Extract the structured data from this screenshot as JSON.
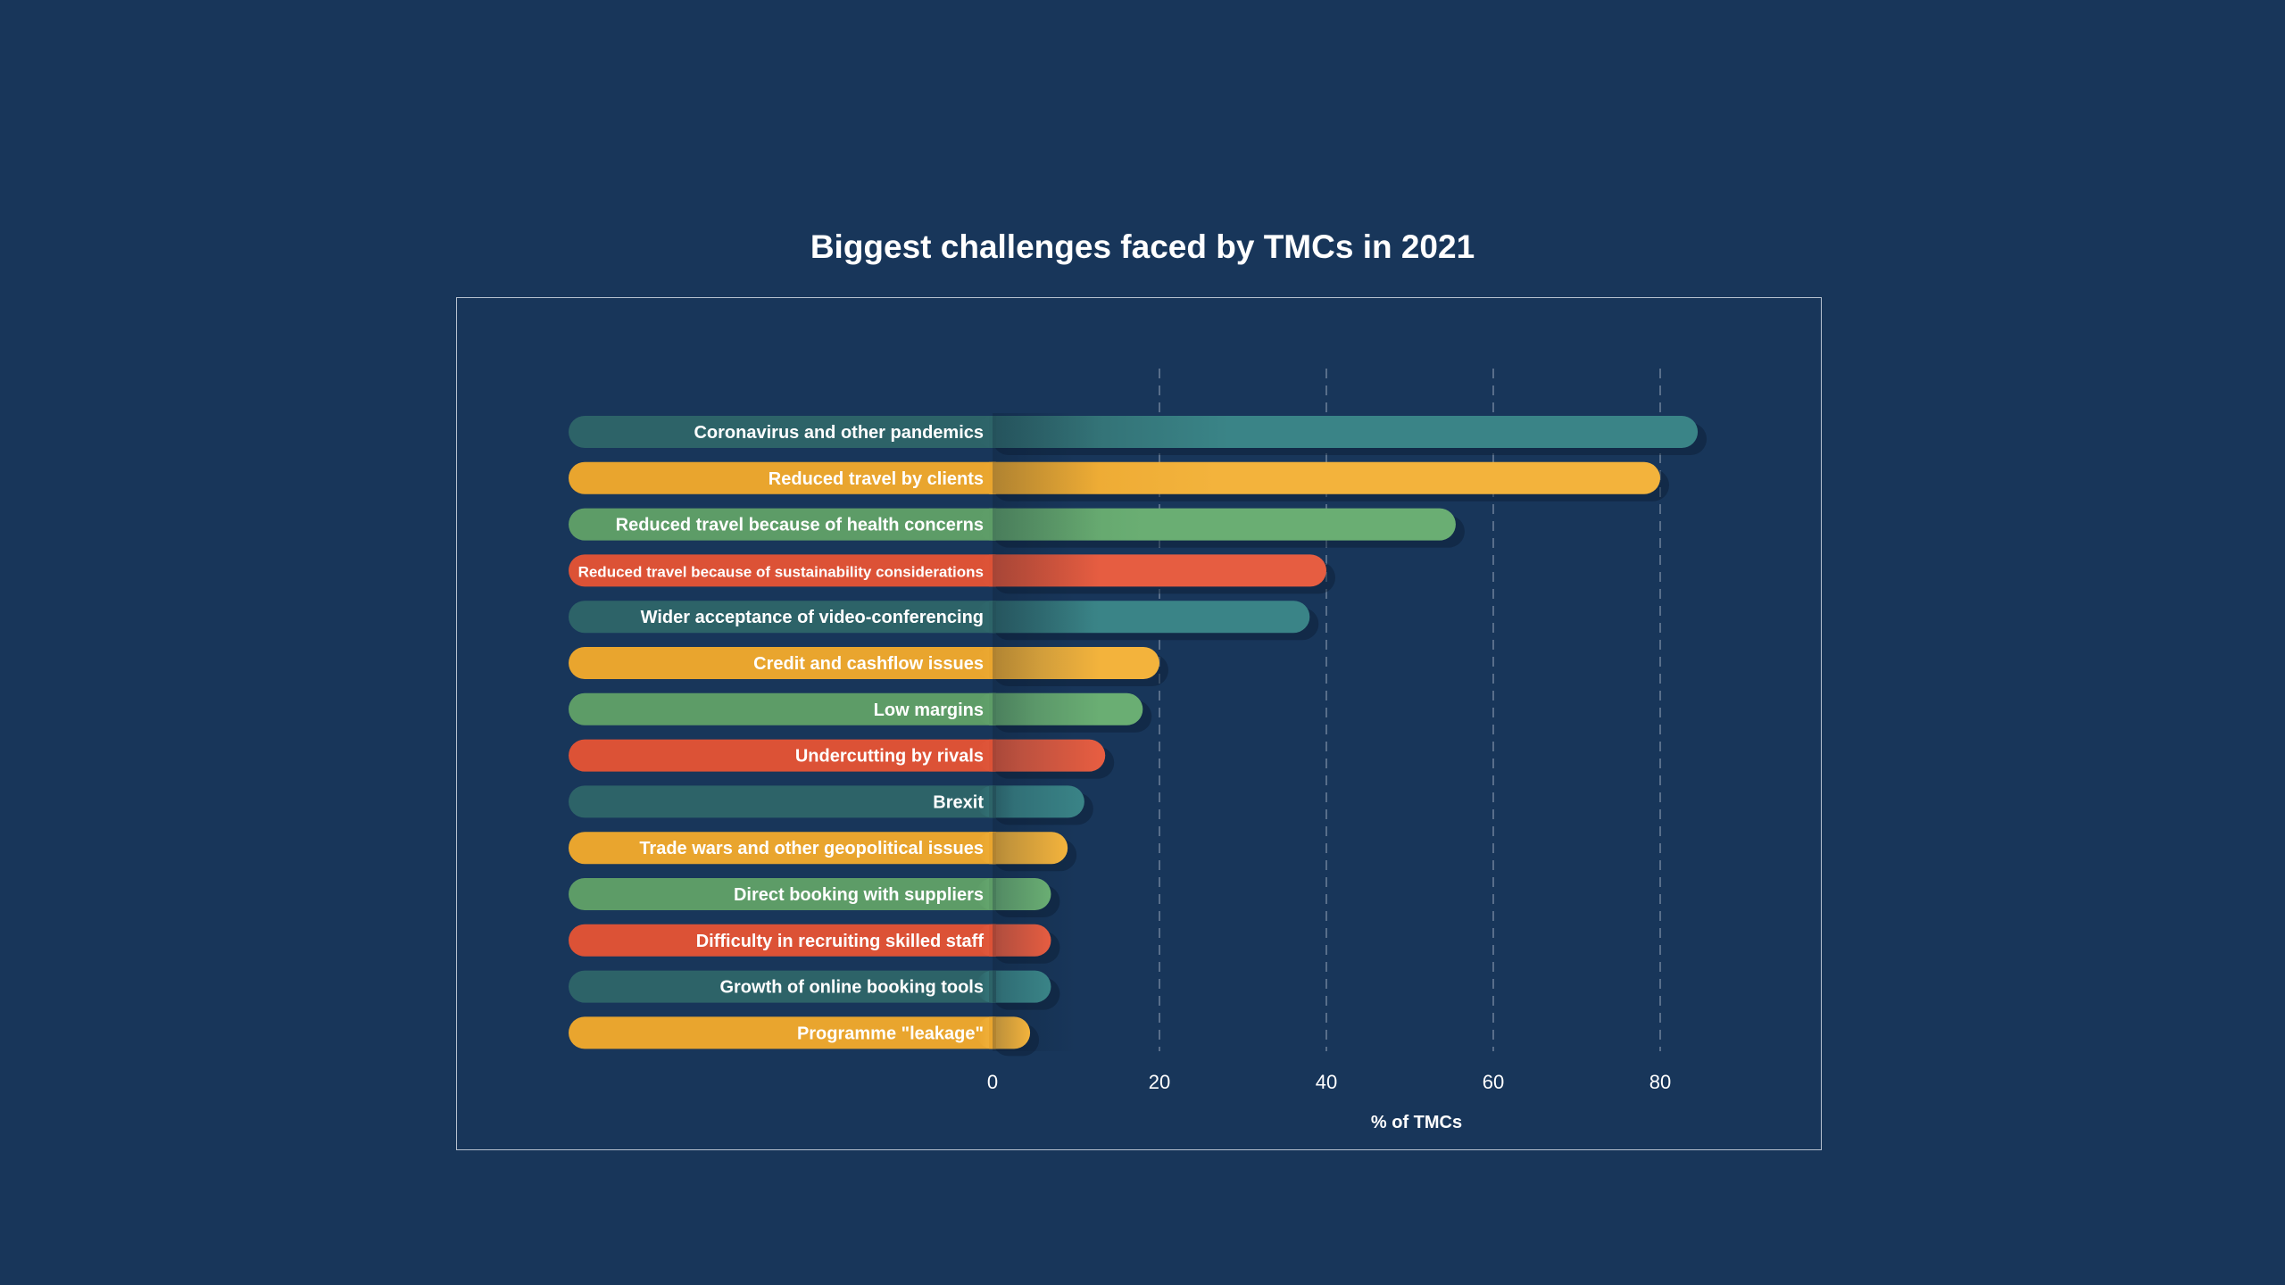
{
  "colors": {
    "background": "#18365a",
    "teal": "#3a8487",
    "yellow": "#f3b33c",
    "green": "#6aae73",
    "red": "#e65d41",
    "text": "#ffffff",
    "grid": "#8a9bb0"
  },
  "chart_data": {
    "type": "bar",
    "orientation": "horizontal",
    "title": "Biggest challenges faced by TMCs in 2021",
    "xlabel": "% of TMCs",
    "ylabel": "",
    "xlim": [
      0,
      100
    ],
    "xticks": [
      0,
      20,
      40,
      60,
      80
    ],
    "grid": "vertical dashed",
    "categories": [
      "Coronavirus and other pandemics",
      "Reduced travel by clients",
      "Reduced travel because of health concerns",
      "Reduced travel because of sustainability considerations",
      "Wider acceptance of video-conferencing",
      "Credit and cashflow issues",
      "Low margins",
      "Undercutting by rivals",
      "Brexit",
      "Trade wars and other geopolitical issues",
      "Direct booking with suppliers",
      "Difficulty in recruiting skilled staff",
      "Growth of online booking tools",
      "Programme \"leakage\""
    ],
    "values": [
      84.5,
      80,
      55.5,
      40,
      38,
      20,
      18,
      13.5,
      11,
      9,
      7,
      7,
      7,
      4.5
    ],
    "bar_colors": [
      "teal",
      "yellow",
      "green",
      "red",
      "teal",
      "yellow",
      "green",
      "red",
      "teal",
      "yellow",
      "green",
      "red",
      "teal",
      "yellow"
    ]
  }
}
